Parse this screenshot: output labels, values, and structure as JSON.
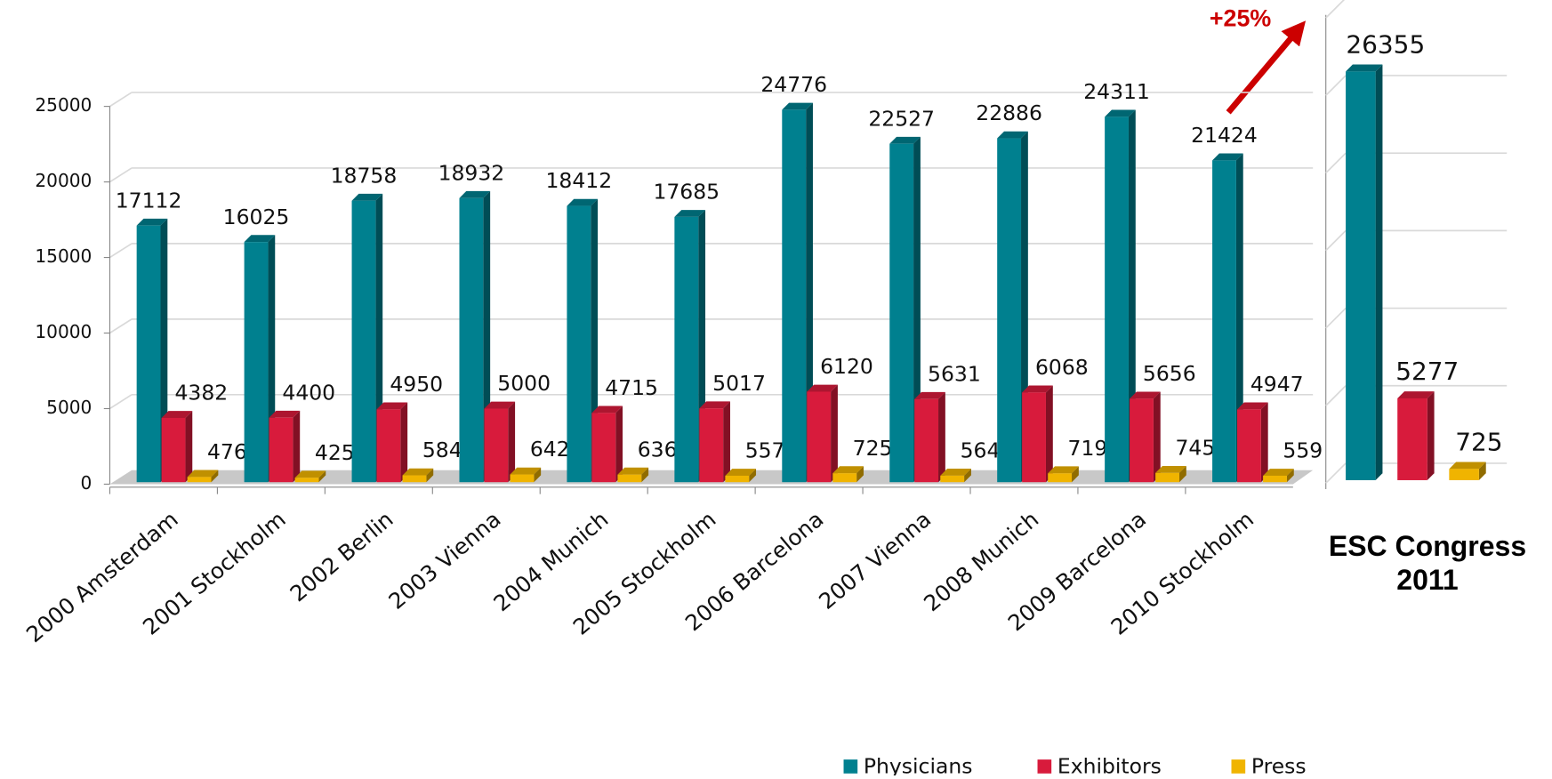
{
  "chart_data": [
    {
      "type": "bar3d",
      "categories": [
        "2000 Amsterdam",
        "2001 Stockholm",
        "2002 Berlin",
        "2003 Vienna",
        "2004 Munich",
        "2005 Stockholm",
        "2006 Barcelona",
        "2007 Vienna",
        "2008 Munich",
        "2009 Barcelona",
        "2010 Stockholm"
      ],
      "series": [
        {
          "name": "Physicians",
          "color": "#00808f",
          "values": [
            17112,
            16025,
            18758,
            18932,
            18412,
            17685,
            24776,
            22527,
            22886,
            24311,
            21424
          ]
        },
        {
          "name": "Exhibitors",
          "color": "#d81b3c",
          "values": [
            4382,
            4400,
            4950,
            5000,
            4715,
            5017,
            6120,
            5631,
            6068,
            5656,
            4947
          ]
        },
        {
          "name": "Press",
          "color": "#f0b400",
          "values": [
            476,
            425,
            584,
            642,
            636,
            557,
            725,
            564,
            719,
            745,
            559
          ]
        }
      ],
      "ylim": [
        0,
        25000
      ],
      "yticks": [
        0,
        5000,
        10000,
        15000,
        20000,
        25000
      ],
      "grid": true,
      "legend": "bottom"
    },
    {
      "type": "bar3d",
      "categories": [
        "ESC Congress 2011"
      ],
      "annotation": "+25%",
      "series": [
        {
          "color": "#00808f",
          "values": [
            26355
          ]
        },
        {
          "color": "#d81b3c",
          "values": [
            5277
          ]
        },
        {
          "color": "#f0b400",
          "values": [
            725
          ]
        }
      ],
      "ylim": [
        0,
        30000
      ],
      "yticks": [
        0,
        5000,
        10000,
        15000,
        20000,
        25000,
        30000
      ],
      "grid": true,
      "show_tick_labels": false
    }
  ]
}
